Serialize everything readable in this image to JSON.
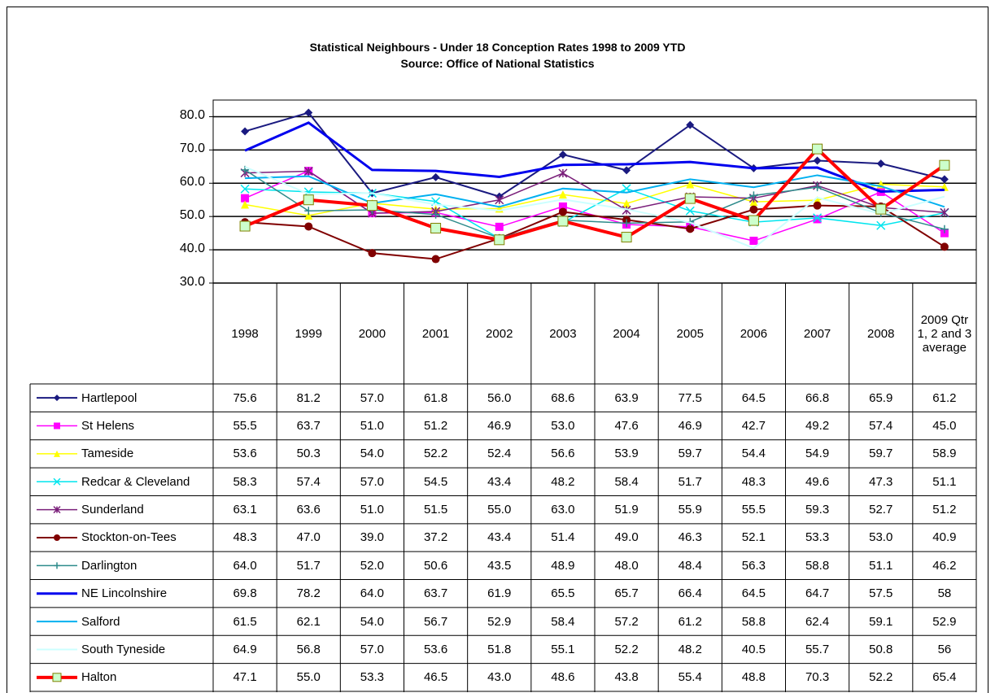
{
  "chart_data": {
    "type": "line",
    "title": "Statistical Neighbours - Under 18 Conception Rates 1998 to 2009 YTD",
    "subtitle": "Source: Office of National Statistics",
    "categories": [
      "1998",
      "1999",
      "2000",
      "2001",
      "2002",
      "2003",
      "2004",
      "2005",
      "2006",
      "2007",
      "2008",
      "2009 Qtr 1, 2 and 3 average"
    ],
    "ylim": [
      30,
      85
    ],
    "yticks": [
      {
        "value": 30,
        "label": "30.0"
      },
      {
        "value": 40,
        "label": "40.0"
      },
      {
        "value": 50,
        "label": "50.0"
      },
      {
        "value": 60,
        "label": "60.0"
      },
      {
        "value": 70,
        "label": "70.0"
      },
      {
        "value": 80,
        "label": "80.0"
      }
    ],
    "grid": true,
    "series": [
      {
        "name": "Hartlepool",
        "color": "#1a1a80",
        "marker": "diamond",
        "line_width": 2,
        "values": [
          75.6,
          81.2,
          57.0,
          61.8,
          56.0,
          68.6,
          63.9,
          77.5,
          64.5,
          66.8,
          65.9,
          61.2
        ],
        "value_labels": [
          "75.6",
          "81.2",
          "57.0",
          "61.8",
          "56.0",
          "68.6",
          "63.9",
          "77.5",
          "64.5",
          "66.8",
          "65.9",
          "61.2"
        ]
      },
      {
        "name": "St Helens",
        "color": "#ff00ff",
        "marker": "square",
        "line_width": 1.5,
        "values": [
          55.5,
          63.7,
          51.0,
          51.2,
          46.9,
          53.0,
          47.6,
          46.9,
          42.7,
          49.2,
          57.4,
          45.0
        ],
        "value_labels": [
          "55.5",
          "63.7",
          "51.0",
          "51.2",
          "46.9",
          "53.0",
          "47.6",
          "46.9",
          "42.7",
          "49.2",
          "57.4",
          "45.0"
        ]
      },
      {
        "name": "Tameside",
        "color": "#ffff00",
        "marker": "triangle",
        "line_width": 1.5,
        "values": [
          53.6,
          50.3,
          54.0,
          52.2,
          52.4,
          56.6,
          53.9,
          59.7,
          54.4,
          54.9,
          59.7,
          58.9
        ],
        "value_labels": [
          "53.6",
          "50.3",
          "54.0",
          "52.2",
          "52.4",
          "56.6",
          "53.9",
          "59.7",
          "54.4",
          "54.9",
          "59.7",
          "58.9"
        ]
      },
      {
        "name": "Redcar & Cleveland",
        "color": "#00e5ee",
        "marker": "x",
        "line_width": 1.5,
        "values": [
          58.3,
          57.4,
          57.0,
          54.5,
          43.4,
          48.2,
          58.4,
          51.7,
          48.3,
          49.6,
          47.3,
          51.1
        ],
        "value_labels": [
          "58.3",
          "57.4",
          "57.0",
          "54.5",
          "43.4",
          "48.2",
          "58.4",
          "51.7",
          "48.3",
          "49.6",
          "47.3",
          "51.1"
        ]
      },
      {
        "name": "Sunderland",
        "color": "#7a1f7a",
        "marker": "star",
        "line_width": 1.5,
        "values": [
          63.1,
          63.6,
          51.0,
          51.5,
          55.0,
          63.0,
          51.9,
          55.9,
          55.5,
          59.3,
          52.7,
          51.2
        ],
        "value_labels": [
          "63.1",
          "63.6",
          "51.0",
          "51.5",
          "55.0",
          "63.0",
          "51.9",
          "55.9",
          "55.5",
          "59.3",
          "52.7",
          "51.2"
        ]
      },
      {
        "name": "Stockton-on-Tees",
        "color": "#800000",
        "marker": "circle",
        "line_width": 2,
        "values": [
          48.3,
          47.0,
          39.0,
          37.2,
          43.4,
          51.4,
          49.0,
          46.3,
          52.1,
          53.3,
          53.0,
          40.9
        ],
        "value_labels": [
          "48.3",
          "47.0",
          "39.0",
          "37.2",
          "43.4",
          "51.4",
          "49.0",
          "46.3",
          "52.1",
          "53.3",
          "53.0",
          "40.9"
        ]
      },
      {
        "name": "Darlington",
        "color": "#2e8b8b",
        "marker": "plus",
        "line_width": 1.5,
        "values": [
          64.0,
          51.7,
          52.0,
          50.6,
          43.5,
          48.9,
          48.0,
          48.4,
          56.3,
          58.8,
          51.1,
          46.2
        ],
        "value_labels": [
          "64.0",
          "51.7",
          "52.0",
          "50.6",
          "43.5",
          "48.9",
          "48.0",
          "48.4",
          "56.3",
          "58.8",
          "51.1",
          "46.2"
        ]
      },
      {
        "name": "NE Lincolnshire",
        "color": "#0000ee",
        "marker": "none",
        "line_width": 3,
        "values": [
          69.8,
          78.2,
          64.0,
          63.7,
          61.9,
          65.5,
          65.7,
          66.4,
          64.5,
          64.7,
          57.5,
          58
        ],
        "value_labels": [
          "69.8",
          "78.2",
          "64.0",
          "63.7",
          "61.9",
          "65.5",
          "65.7",
          "66.4",
          "64.5",
          "64.7",
          "57.5",
          "58"
        ]
      },
      {
        "name": "Salford",
        "color": "#00b0f0",
        "marker": "none",
        "line_width": 2,
        "values": [
          61.5,
          62.1,
          54.0,
          56.7,
          52.9,
          58.4,
          57.2,
          61.2,
          58.8,
          62.4,
          59.1,
          52.9
        ],
        "value_labels": [
          "61.5",
          "62.1",
          "54.0",
          "56.7",
          "52.9",
          "58.4",
          "57.2",
          "61.2",
          "58.8",
          "62.4",
          "59.1",
          "52.9"
        ]
      },
      {
        "name": "South Tyneside",
        "color": "#ccffff",
        "marker": "none",
        "line_width": 2,
        "values": [
          64.9,
          56.8,
          57.0,
          53.6,
          51.8,
          55.1,
          52.2,
          48.2,
          40.5,
          55.7,
          50.8,
          56
        ],
        "value_labels": [
          "64.9",
          "56.8",
          "57.0",
          "53.6",
          "51.8",
          "55.1",
          "52.2",
          "48.2",
          "40.5",
          "55.7",
          "50.8",
          "56"
        ]
      },
      {
        "name": "Halton",
        "color": "#ff0000",
        "marker": "square-green",
        "line_width": 4,
        "values": [
          47.1,
          55.0,
          53.3,
          46.5,
          43.0,
          48.6,
          43.8,
          55.4,
          48.8,
          70.3,
          52.2,
          65.4
        ],
        "value_labels": [
          "47.1",
          "55.0",
          "53.3",
          "46.5",
          "43.0",
          "48.6",
          "43.8",
          "55.4",
          "48.8",
          "70.3",
          "52.2",
          "65.4"
        ]
      }
    ]
  }
}
